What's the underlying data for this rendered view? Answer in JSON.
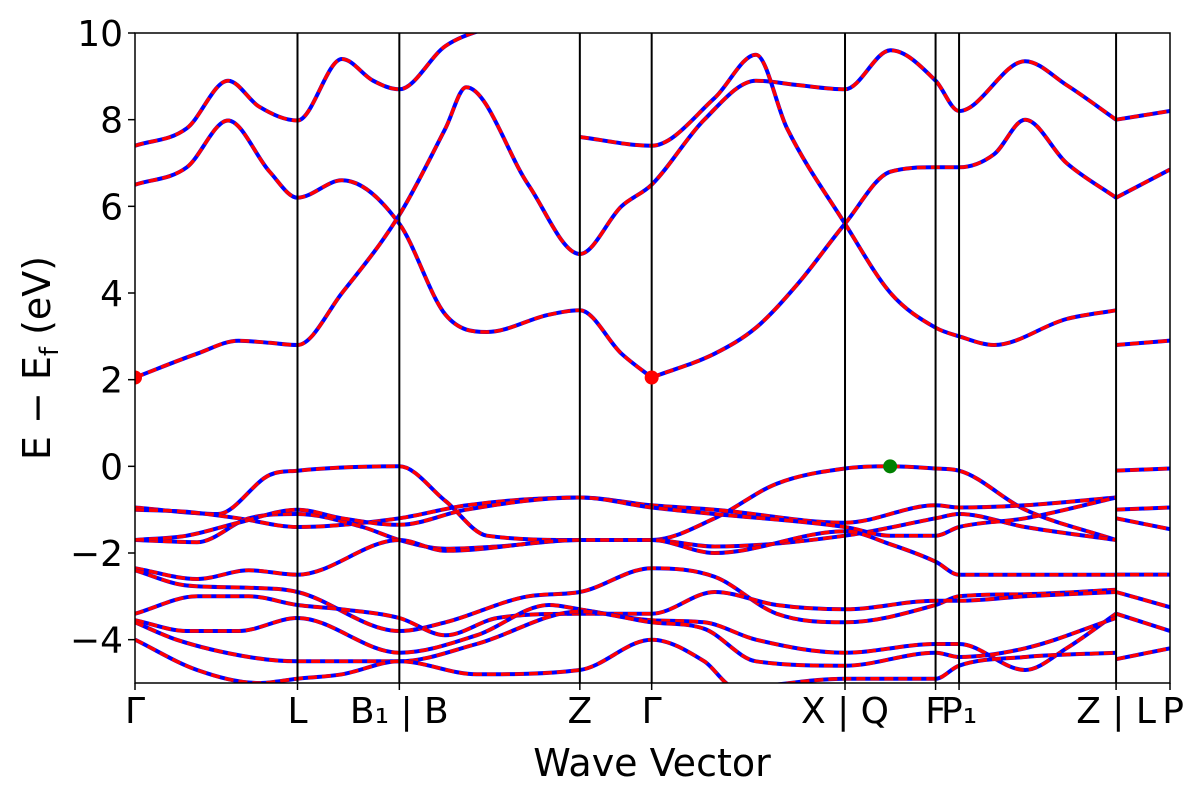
{
  "chart_data": {
    "type": "line",
    "title": "",
    "xlabel": "Wave Vector",
    "ylabel": {
      "main": "E − E",
      "sub": "f",
      "unit": "(eV)"
    },
    "ylim": [
      -5,
      10
    ],
    "xlim": [
      0,
      1
    ],
    "yticks": [
      -4,
      -2,
      0,
      2,
      4,
      6,
      8,
      10
    ],
    "ytick_labels": [
      "−4",
      "−2",
      "0",
      "2",
      "4",
      "6",
      "8",
      "10"
    ],
    "high_symmetry_points": [
      {
        "x": 0.0,
        "label": "Γ"
      },
      {
        "x": 0.157,
        "label": "L"
      },
      {
        "x": 0.2554,
        "label": "B₁ | B"
      },
      {
        "x": 0.4298,
        "label": "Z"
      },
      {
        "x": 0.4992,
        "label": "Γ"
      },
      {
        "x": 0.686,
        "label": "X | Q"
      },
      {
        "x": 0.7735,
        "label": "F"
      },
      {
        "x": 0.7962,
        "label": "P₁"
      },
      {
        "x": 0.9479,
        "label": "Z | L"
      },
      {
        "x": 1.0,
        "label": "P"
      }
    ],
    "series_style": {
      "primary_color": "#ff0000",
      "overlay_color": "#0000ff",
      "overlay_dash": "dashed"
    },
    "markers": [
      {
        "x": 0.0,
        "y": 2.05,
        "color": "#ff0000",
        "meaning": "CBM"
      },
      {
        "x": 0.4992,
        "y": 2.05,
        "color": "#ff0000",
        "meaning": "CBM"
      },
      {
        "x": 0.7296,
        "y": 0.0,
        "color": "#008000",
        "meaning": "VBM"
      }
    ],
    "series": [
      {
        "values": [
          [
            0.0,
            7.4
          ],
          [
            0.05,
            7.8
          ],
          [
            0.09,
            8.9
          ],
          [
            0.12,
            8.3
          ],
          [
            0.157,
            7.98
          ],
          [
            0.2,
            9.4
          ],
          [
            0.23,
            8.9
          ],
          [
            0.2554,
            8.7
          ],
          [
            0.3,
            9.7
          ],
          [
            0.35,
            10.2
          ]
        ]
      },
      {
        "values": [
          [
            0.0,
            6.5
          ],
          [
            0.05,
            6.9
          ],
          [
            0.09,
            7.98
          ],
          [
            0.13,
            6.8
          ],
          [
            0.157,
            6.2
          ],
          [
            0.2,
            6.6
          ],
          [
            0.2554,
            5.6
          ],
          [
            0.3,
            3.5
          ],
          [
            0.34,
            3.1
          ],
          [
            0.4,
            3.5
          ],
          [
            0.4298,
            3.6
          ],
          [
            0.47,
            2.6
          ],
          [
            0.4992,
            2.05
          ]
        ]
      },
      {
        "values": [
          [
            0.0,
            2.05
          ],
          [
            0.06,
            2.6
          ],
          [
            0.1,
            2.9
          ],
          [
            0.13,
            2.85
          ],
          [
            0.157,
            2.8
          ],
          [
            0.2,
            4.0
          ],
          [
            0.2554,
            5.8
          ],
          [
            0.3,
            7.8
          ],
          [
            0.32,
            8.75
          ],
          [
            0.38,
            6.5
          ],
          [
            0.4298,
            4.9
          ],
          [
            0.47,
            6.0
          ],
          [
            0.4992,
            6.5
          ],
          [
            0.55,
            8.0
          ],
          [
            0.6,
            8.9
          ],
          [
            0.64,
            8.8
          ],
          [
            0.686,
            8.7
          ],
          [
            0.73,
            9.6
          ],
          [
            0.7735,
            8.9
          ],
          [
            0.7962,
            8.2
          ],
          [
            0.86,
            9.35
          ],
          [
            0.9,
            8.8
          ],
          [
            0.9479,
            8.0
          ]
        ]
      },
      {
        "values": [
          [
            0.4298,
            7.6
          ],
          [
            0.4992,
            7.4
          ],
          [
            0.56,
            8.5
          ],
          [
            0.6,
            9.5
          ],
          [
            0.63,
            7.8
          ],
          [
            0.686,
            5.6
          ],
          [
            0.73,
            4.0
          ],
          [
            0.7735,
            3.2
          ],
          [
            0.7962,
            3.0
          ],
          [
            0.83,
            2.8
          ],
          [
            0.9,
            3.4
          ],
          [
            0.9479,
            3.6
          ]
        ]
      },
      {
        "values": [
          [
            0.4992,
            2.05
          ],
          [
            0.56,
            2.6
          ],
          [
            0.6,
            3.2
          ],
          [
            0.64,
            4.2
          ],
          [
            0.686,
            5.6
          ],
          [
            0.73,
            6.8
          ],
          [
            0.7735,
            6.9
          ],
          [
            0.7962,
            6.9
          ],
          [
            0.83,
            7.2
          ],
          [
            0.86,
            8.0
          ],
          [
            0.9,
            7.0
          ],
          [
            0.9479,
            6.2
          ]
        ]
      },
      {
        "values": [
          [
            0.9479,
            2.8
          ],
          [
            1.0,
            2.9
          ]
        ]
      },
      {
        "values": [
          [
            0.9479,
            6.2
          ],
          [
            1.0,
            6.85
          ]
        ]
      },
      {
        "values": [
          [
            0.9479,
            8.0
          ],
          [
            1.0,
            8.2
          ]
        ]
      },
      {
        "values": [
          [
            0.0,
            -0.95
          ],
          [
            0.08,
            -1.1
          ],
          [
            0.13,
            -0.2
          ],
          [
            0.157,
            -0.1
          ],
          [
            0.2554,
            0.0
          ],
          [
            0.3,
            -0.8
          ],
          [
            0.34,
            -1.6
          ],
          [
            0.4298,
            -1.7
          ],
          [
            0.4992,
            -1.7
          ],
          [
            0.56,
            -1.2
          ],
          [
            0.62,
            -0.4
          ],
          [
            0.686,
            -0.05
          ],
          [
            0.7296,
            0.0
          ],
          [
            0.7735,
            -0.05
          ],
          [
            0.7962,
            -0.1
          ],
          [
            0.86,
            -1.0
          ],
          [
            0.9479,
            -1.7
          ]
        ]
      },
      {
        "values": [
          [
            0.0,
            -1.0
          ],
          [
            0.05,
            -1.05
          ],
          [
            0.1,
            -1.2
          ],
          [
            0.157,
            -1.4
          ],
          [
            0.2554,
            -1.2
          ],
          [
            0.32,
            -0.9
          ],
          [
            0.4298,
            -0.72
          ],
          [
            0.4992,
            -0.9
          ],
          [
            0.56,
            -1.0
          ],
          [
            0.686,
            -1.3
          ],
          [
            0.7735,
            -0.9
          ],
          [
            0.7962,
            -0.95
          ],
          [
            0.86,
            -0.9
          ],
          [
            0.9479,
            -0.72
          ]
        ]
      },
      {
        "values": [
          [
            0.0,
            -1.7
          ],
          [
            0.06,
            -1.75
          ],
          [
            0.11,
            -1.2
          ],
          [
            0.157,
            -1.1
          ],
          [
            0.22,
            -1.4
          ],
          [
            0.2554,
            -1.7
          ],
          [
            0.3,
            -1.9
          ],
          [
            0.35,
            -1.85
          ],
          [
            0.4298,
            -1.7
          ],
          [
            0.4992,
            -1.7
          ],
          [
            0.56,
            -1.85
          ],
          [
            0.686,
            -1.6
          ],
          [
            0.7735,
            -1.2
          ],
          [
            0.7962,
            -1.1
          ],
          [
            0.86,
            -1.4
          ],
          [
            0.9479,
            -1.7
          ]
        ]
      },
      {
        "values": [
          [
            0.0,
            -1.7
          ],
          [
            0.05,
            -1.6
          ],
          [
            0.1,
            -1.3
          ],
          [
            0.157,
            -1.0
          ],
          [
            0.2,
            -1.2
          ],
          [
            0.2554,
            -1.35
          ],
          [
            0.32,
            -1.0
          ],
          [
            0.4298,
            -0.72
          ],
          [
            0.4992,
            -0.95
          ],
          [
            0.56,
            -1.1
          ],
          [
            0.686,
            -1.4
          ],
          [
            0.73,
            -1.6
          ],
          [
            0.7735,
            -1.6
          ],
          [
            0.7962,
            -1.4
          ],
          [
            0.86,
            -1.2
          ],
          [
            0.9479,
            -0.72
          ]
        ]
      },
      {
        "values": [
          [
            0.0,
            -2.35
          ],
          [
            0.06,
            -2.6
          ],
          [
            0.11,
            -2.4
          ],
          [
            0.157,
            -2.5
          ],
          [
            0.2554,
            -1.7
          ],
          [
            0.3,
            -1.95
          ],
          [
            0.4298,
            -1.7
          ],
          [
            0.4992,
            -1.7
          ],
          [
            0.56,
            -2.0
          ],
          [
            0.686,
            -1.5
          ],
          [
            0.73,
            -1.8
          ],
          [
            0.7735,
            -2.2
          ],
          [
            0.7962,
            -2.5
          ],
          [
            0.86,
            -2.5
          ],
          [
            0.9479,
            -2.5
          ]
        ]
      },
      {
        "values": [
          [
            0.0,
            -2.4
          ],
          [
            0.05,
            -2.75
          ],
          [
            0.11,
            -2.8
          ],
          [
            0.157,
            -2.9
          ],
          [
            0.2554,
            -3.8
          ],
          [
            0.3,
            -3.6
          ],
          [
            0.38,
            -3.0
          ],
          [
            0.4298,
            -2.9
          ],
          [
            0.4992,
            -2.35
          ],
          [
            0.56,
            -2.55
          ],
          [
            0.62,
            -3.4
          ],
          [
            0.686,
            -3.6
          ],
          [
            0.7735,
            -3.2
          ],
          [
            0.7962,
            -3.0
          ],
          [
            0.86,
            -2.95
          ],
          [
            0.9479,
            -2.85
          ]
        ]
      },
      {
        "values": [
          [
            0.0,
            -3.4
          ],
          [
            0.06,
            -3.0
          ],
          [
            0.11,
            -3.0
          ],
          [
            0.157,
            -3.2
          ],
          [
            0.2,
            -3.3
          ],
          [
            0.2554,
            -3.5
          ],
          [
            0.3,
            -3.9
          ],
          [
            0.35,
            -3.5
          ],
          [
            0.4298,
            -3.4
          ],
          [
            0.4992,
            -3.4
          ],
          [
            0.56,
            -2.9
          ],
          [
            0.62,
            -3.2
          ],
          [
            0.686,
            -3.3
          ],
          [
            0.7735,
            -3.1
          ],
          [
            0.7962,
            -3.1
          ],
          [
            0.86,
            -3.0
          ],
          [
            0.9479,
            -2.9
          ]
        ]
      },
      {
        "values": [
          [
            0.0,
            -3.55
          ],
          [
            0.05,
            -3.8
          ],
          [
            0.1,
            -3.8
          ],
          [
            0.157,
            -3.5
          ],
          [
            0.2554,
            -4.3
          ],
          [
            0.33,
            -3.9
          ],
          [
            0.4,
            -3.2
          ],
          [
            0.4298,
            -3.3
          ],
          [
            0.4992,
            -3.55
          ],
          [
            0.55,
            -3.6
          ],
          [
            0.6,
            -4.0
          ],
          [
            0.686,
            -4.3
          ],
          [
            0.7735,
            -4.1
          ],
          [
            0.7962,
            -4.1
          ],
          [
            0.86,
            -4.7
          ],
          [
            0.9,
            -4.2
          ],
          [
            0.9479,
            -3.4
          ]
        ]
      },
      {
        "values": [
          [
            0.0,
            -3.6
          ],
          [
            0.04,
            -4.0
          ],
          [
            0.11,
            -4.4
          ],
          [
            0.157,
            -4.5
          ],
          [
            0.2554,
            -4.5
          ],
          [
            0.33,
            -4.1
          ],
          [
            0.4298,
            -3.35
          ],
          [
            0.4992,
            -3.6
          ],
          [
            0.55,
            -3.75
          ],
          [
            0.6,
            -4.5
          ],
          [
            0.686,
            -4.6
          ],
          [
            0.7735,
            -4.3
          ],
          [
            0.7962,
            -4.4
          ],
          [
            0.86,
            -4.2
          ],
          [
            0.9479,
            -3.5
          ]
        ]
      },
      {
        "values": [
          [
            0.0,
            -4.0
          ],
          [
            0.06,
            -4.7
          ],
          [
            0.12,
            -5.0
          ],
          [
            0.157,
            -4.9
          ],
          [
            0.2,
            -4.8
          ],
          [
            0.2554,
            -4.5
          ],
          [
            0.33,
            -4.8
          ],
          [
            0.4298,
            -4.7
          ],
          [
            0.4992,
            -4.0
          ],
          [
            0.55,
            -4.5
          ],
          [
            0.58,
            -5.1
          ],
          [
            0.686,
            -4.9
          ],
          [
            0.7735,
            -4.9
          ],
          [
            0.7962,
            -4.6
          ],
          [
            0.86,
            -4.4
          ],
          [
            0.9479,
            -4.3
          ]
        ]
      },
      {
        "values": [
          [
            0.9479,
            -0.1
          ],
          [
            1.0,
            -0.05
          ]
        ]
      },
      {
        "values": [
          [
            0.9479,
            -1.0
          ],
          [
            1.0,
            -0.95
          ]
        ]
      },
      {
        "values": [
          [
            0.9479,
            -1.2
          ],
          [
            1.0,
            -1.45
          ]
        ]
      },
      {
        "values": [
          [
            0.9479,
            -2.5
          ],
          [
            1.0,
            -2.5
          ]
        ]
      },
      {
        "values": [
          [
            0.9479,
            -2.9
          ],
          [
            1.0,
            -3.25
          ]
        ]
      },
      {
        "values": [
          [
            0.9479,
            -3.4
          ],
          [
            1.0,
            -3.8
          ]
        ]
      },
      {
        "values": [
          [
            0.9479,
            -4.45
          ],
          [
            1.0,
            -4.2
          ]
        ]
      }
    ]
  }
}
